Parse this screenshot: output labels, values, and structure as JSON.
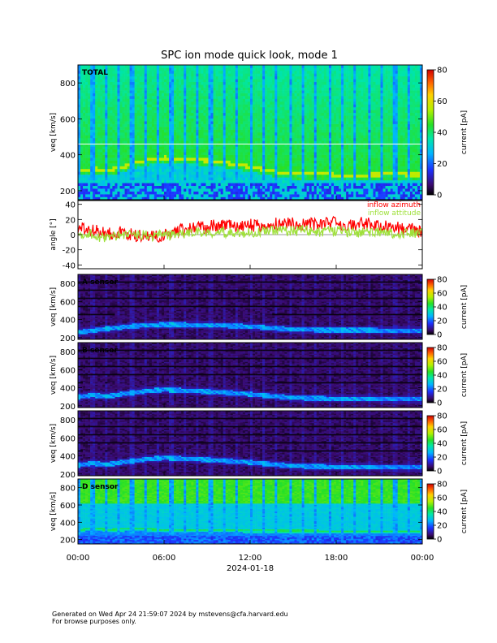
{
  "title": "SPC ion mode quick look, mode 1",
  "footer": {
    "line1": "Generated on Wed Apr 24 21:59:07 2024 by mstevens@cfa.harvard.edu",
    "line2": "For browse purposes only."
  },
  "chart_data": [
    {
      "type": "heatmap",
      "panel_label": "TOTAL",
      "ylabel": "v_eq [km/s]",
      "ylim": [
        150,
        900
      ],
      "yticks": [
        200,
        400,
        600,
        800
      ],
      "colorbar": {
        "label": "current [pA]",
        "range": [
          0,
          80
        ],
        "ticks": [
          0,
          20,
          40,
          60,
          80
        ],
        "colormap": "rainbow"
      },
      "ridge_velocity_kms": [
        [
          0,
          300
        ],
        [
          1,
          315
        ],
        [
          2,
          305
        ],
        [
          3,
          320
        ],
        [
          4,
          345
        ],
        [
          5,
          365
        ],
        [
          6,
          375
        ],
        [
          7,
          370
        ],
        [
          8,
          365
        ],
        [
          9,
          360
        ],
        [
          10,
          350
        ],
        [
          11,
          340
        ],
        [
          12,
          325
        ],
        [
          13,
          310
        ],
        [
          14,
          295
        ],
        [
          15,
          285
        ],
        [
          16,
          285
        ],
        [
          17,
          285
        ],
        [
          18,
          280
        ],
        [
          20,
          280
        ],
        [
          22,
          285
        ],
        [
          24,
          280
        ]
      ],
      "horizontal_line_kms": 460,
      "background_level": "green (~30 pA) above 300 km/s, cyan/blue below 280 km/s",
      "periodic_stripes": "dark blue vertical stripes roughly every 55 minutes"
    },
    {
      "type": "line",
      "ylabel": "angle [°]",
      "ylim": [
        -45,
        45
      ],
      "yticks": [
        -40,
        -20,
        0,
        20,
        40
      ],
      "series": [
        {
          "name": "inflow azimuth",
          "color": "#ff0000",
          "x_hours": [
            0,
            1,
            2,
            3,
            4,
            5,
            6,
            7,
            8,
            9,
            10,
            11,
            12,
            13,
            14,
            15,
            16,
            17,
            18,
            19,
            20,
            21,
            22,
            23,
            24
          ],
          "values": [
            8,
            5,
            2,
            3,
            -2,
            -3,
            -2,
            5,
            8,
            10,
            12,
            10,
            12,
            10,
            15,
            15,
            14,
            15,
            15,
            12,
            15,
            12,
            8,
            8,
            5
          ]
        },
        {
          "name": "inflow attitude",
          "color": "#9ee03a",
          "x_hours": [
            0,
            1,
            2,
            3,
            4,
            5,
            6,
            7,
            8,
            9,
            10,
            11,
            12,
            13,
            14,
            15,
            16,
            17,
            18,
            19,
            20,
            21,
            22,
            23,
            24
          ],
          "values": [
            2,
            0,
            -5,
            0,
            0,
            -2,
            0,
            0,
            2,
            2,
            3,
            2,
            3,
            5,
            5,
            5,
            5,
            3,
            5,
            3,
            3,
            3,
            2,
            2,
            2
          ]
        }
      ]
    },
    {
      "type": "heatmap",
      "panel_label": "A sensor",
      "ylabel": "v_eq [km/s]",
      "ylim": [
        180,
        900
      ],
      "yticks": [
        200,
        400,
        600,
        800
      ],
      "colorbar": {
        "label": "current [pA]",
        "range": [
          0,
          80
        ],
        "ticks": [
          0,
          20,
          40,
          60,
          80
        ],
        "colormap": "rainbow"
      },
      "ridge_velocity_kms": [
        [
          0,
          260
        ],
        [
          2,
          300
        ],
        [
          4,
          330
        ],
        [
          6,
          345
        ],
        [
          9,
          340
        ],
        [
          12,
          325
        ],
        [
          15,
          290
        ],
        [
          18,
          285
        ],
        [
          24,
          280
        ]
      ],
      "background_level": "dark purple (~5 pA)"
    },
    {
      "type": "heatmap",
      "panel_label": "B sensor",
      "ylabel": "v_eq [km/s]",
      "ylim": [
        180,
        900
      ],
      "yticks": [
        200,
        400,
        600,
        800
      ],
      "colorbar": {
        "label": "current [pA]",
        "range": [
          0,
          80
        ],
        "ticks": [
          0,
          20,
          40,
          60,
          80
        ],
        "colormap": "rainbow"
      },
      "ridge_velocity_kms": [
        [
          0,
          300
        ],
        [
          1,
          320
        ],
        [
          2,
          305
        ],
        [
          3,
          330
        ],
        [
          5,
          370
        ],
        [
          6,
          380
        ],
        [
          9,
          360
        ],
        [
          12,
          330
        ],
        [
          15,
          290
        ],
        [
          18,
          280
        ],
        [
          24,
          275
        ]
      ],
      "background_level": "dark purple (~5 pA)"
    },
    {
      "type": "heatmap",
      "panel_label": "",
      "ylabel": "v_eq [km/s]",
      "ylim": [
        180,
        900
      ],
      "yticks": [
        200,
        400,
        600,
        800
      ],
      "colorbar": {
        "label": "current [pA]",
        "range": [
          0,
          80
        ],
        "ticks": [
          0,
          20,
          40,
          60,
          80
        ],
        "colormap": "rainbow"
      },
      "ridge_velocity_kms": [
        [
          0,
          300
        ],
        [
          1,
          320
        ],
        [
          2,
          305
        ],
        [
          3,
          330
        ],
        [
          5,
          370
        ],
        [
          6,
          380
        ],
        [
          9,
          360
        ],
        [
          12,
          330
        ],
        [
          15,
          290
        ],
        [
          18,
          280
        ],
        [
          24,
          275
        ]
      ],
      "background_level": "dark purple (~5 pA)"
    },
    {
      "type": "heatmap",
      "panel_label": "D sensor",
      "ylabel": "v_eq [km/s]",
      "ylim": [
        150,
        900
      ],
      "yticks": [
        200,
        400,
        600,
        800
      ],
      "colorbar": {
        "label": "current [pA]",
        "range": [
          0,
          80
        ],
        "ticks": [
          0,
          20,
          40,
          60,
          80
        ],
        "colormap": "rainbow"
      },
      "ridge_velocity_kms": [
        [
          0,
          300
        ],
        [
          1,
          330
        ],
        [
          2,
          310
        ],
        [
          4,
          320
        ],
        [
          6,
          310
        ],
        [
          12,
          300
        ],
        [
          24,
          290
        ]
      ],
      "background_level": "green above 600 km/s, cyan/blue below",
      "periodic_stripes": "dark blue vertical stripes roughly every 55 minutes"
    }
  ],
  "x_axis": {
    "tick_labels": [
      "00:00",
      "06:00",
      "12:00",
      "18:00",
      "00:00"
    ],
    "tick_hours": [
      0,
      6,
      12,
      18,
      24
    ],
    "date_label": "2024-01-18"
  }
}
